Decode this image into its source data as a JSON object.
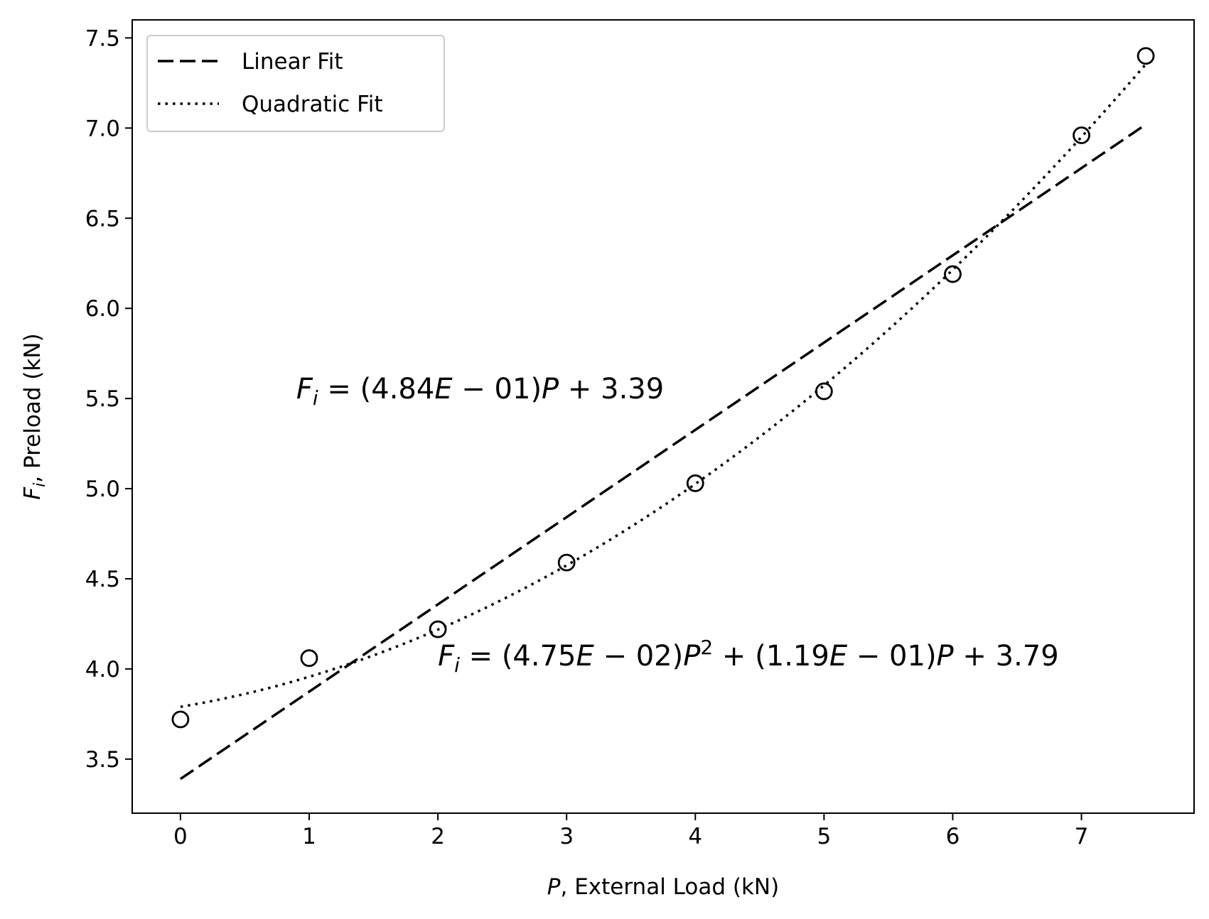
{
  "chart_data": {
    "type": "scatter",
    "xlabel": {
      "var": "P",
      "rest": ", External Load (kN)"
    },
    "ylabel": {
      "var": "F",
      "sub": "i",
      "rest": ", Preload (kN)"
    },
    "xlim": [
      -0.375,
      7.875
    ],
    "ylim": [
      3.2,
      7.6
    ],
    "x_ticks": [
      0,
      1,
      2,
      3,
      4,
      5,
      6,
      7
    ],
    "y_ticks": [
      3.5,
      4.0,
      4.5,
      5.0,
      5.5,
      6.0,
      6.5,
      7.0,
      7.5
    ],
    "x_tick_labels": [
      "0",
      "1",
      "2",
      "3",
      "4",
      "5",
      "6",
      "7"
    ],
    "y_tick_labels": [
      "3.5",
      "4.0",
      "4.5",
      "5.0",
      "5.5",
      "6.0",
      "6.5",
      "7.0",
      "7.5"
    ],
    "grid": false,
    "legend_position": "top-left",
    "data_points": {
      "marker": "open-circle",
      "x": [
        0,
        1,
        2,
        3,
        4,
        5,
        6,
        7,
        7.5
      ],
      "y": [
        3.72,
        4.06,
        4.22,
        4.59,
        5.03,
        5.54,
        6.19,
        6.96,
        7.4
      ]
    },
    "series": [
      {
        "name": "Linear Fit",
        "style": "dashed",
        "coefficients": [
          0.0,
          0.484,
          3.39
        ],
        "x_range": [
          0,
          7.5
        ]
      },
      {
        "name": "Quadratic Fit",
        "style": "dotted",
        "coefficients": [
          0.0475,
          0.119,
          3.79
        ],
        "x_range": [
          0,
          7.5
        ]
      }
    ],
    "annotations": [
      {
        "id": "linear-equation",
        "x": 0.9,
        "y": 5.5,
        "parts": [
          {
            "t": "F",
            "style": "italic"
          },
          {
            "t": "i",
            "style": "italic-sub"
          },
          {
            "t": " = (4.84",
            "style": "normal"
          },
          {
            "t": "E",
            "style": "italic"
          },
          {
            "t": " − 01)",
            "style": "normal"
          },
          {
            "t": "P",
            "style": "italic"
          },
          {
            "t": " + 3.39",
            "style": "normal"
          }
        ]
      },
      {
        "id": "quadratic-equation",
        "x": 2.0,
        "y": 4.02,
        "parts": [
          {
            "t": "F",
            "style": "italic"
          },
          {
            "t": "i",
            "style": "italic-sub"
          },
          {
            "t": " = (4.75",
            "style": "normal"
          },
          {
            "t": "E",
            "style": "italic"
          },
          {
            "t": " − 02)",
            "style": "normal"
          },
          {
            "t": "P",
            "style": "italic"
          },
          {
            "t": "2",
            "style": "sup"
          },
          {
            "t": " + (1.19",
            "style": "normal"
          },
          {
            "t": "E",
            "style": "italic"
          },
          {
            "t": " − 01)",
            "style": "normal"
          },
          {
            "t": "P",
            "style": "italic"
          },
          {
            "t": " + 3.79",
            "style": "normal"
          }
        ]
      }
    ]
  }
}
